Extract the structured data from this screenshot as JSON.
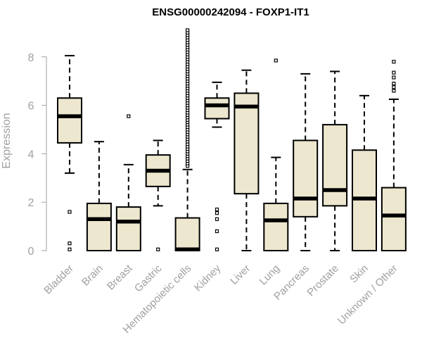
{
  "chart_data": {
    "type": "box",
    "title": "ENSG00000242094 - FOXP1-IT1",
    "xlabel": "",
    "ylabel": "Expression",
    "ylim": [
      0,
      9
    ],
    "yticks": [
      0,
      2,
      4,
      6,
      8
    ],
    "grid": false,
    "colors": {
      "box_fill": "#ede7cf",
      "box_stroke": "#000000",
      "axis": "#a0a0a0",
      "tick_label": "#a0a0a0",
      "title": "#000000"
    },
    "categories": [
      "Bladder",
      "Brain",
      "Breast",
      "Gastric",
      "Hematopoietic cells",
      "Kidney",
      "Liver",
      "Lung",
      "Pancreas",
      "Prostate",
      "Skin",
      "Unknown / Other"
    ],
    "boxes": [
      {
        "category": "Bladder",
        "whisker_low": 3.2,
        "q1": 4.45,
        "median": 5.55,
        "q3": 6.3,
        "whisker_high": 8.05,
        "outliers": [
          1.6,
          0.3,
          0.05
        ]
      },
      {
        "category": "Brain",
        "whisker_low": 0,
        "q1": 0,
        "median": 1.3,
        "q3": 1.95,
        "whisker_high": 4.5,
        "outliers": []
      },
      {
        "category": "Breast",
        "whisker_low": 0,
        "q1": 0,
        "median": 1.2,
        "q3": 1.8,
        "whisker_high": 3.55,
        "outliers": [
          5.55
        ]
      },
      {
        "category": "Gastric",
        "whisker_low": 1.85,
        "q1": 2.65,
        "median": 3.3,
        "q3": 3.95,
        "whisker_high": 4.55,
        "outliers": [
          0.05
        ]
      },
      {
        "category": "Hematopoietic cells",
        "whisker_low": 0,
        "q1": 0,
        "median": 0.05,
        "q3": 1.35,
        "whisker_high": 3.35,
        "outliers": [
          3.5,
          3.6,
          3.7,
          3.8,
          3.9,
          4.0,
          4.1,
          4.2,
          4.3,
          4.4,
          4.5,
          4.6,
          4.7,
          4.8,
          4.9,
          5.0,
          5.1,
          5.2,
          5.3,
          5.4,
          5.5,
          5.6,
          5.7,
          5.8,
          5.9,
          6.0,
          6.1,
          6.2,
          6.3,
          6.4,
          6.5,
          6.6,
          6.7,
          6.8,
          6.9,
          7.0,
          7.1,
          7.2,
          7.3,
          7.4,
          7.5,
          7.6,
          7.7,
          7.8,
          7.9,
          8.0,
          8.1,
          8.2,
          8.3,
          8.4,
          8.5,
          8.6,
          8.7,
          8.8,
          8.9,
          9.0,
          9.1
        ]
      },
      {
        "category": "Kidney",
        "whisker_low": 5.1,
        "q1": 5.45,
        "median": 6.0,
        "q3": 6.3,
        "whisker_high": 6.95,
        "outliers": [
          1.7,
          1.55,
          1.3,
          0.8,
          0.05
        ]
      },
      {
        "category": "Liver",
        "whisker_low": 0,
        "q1": 2.35,
        "median": 5.95,
        "q3": 6.5,
        "whisker_high": 7.45,
        "outliers": []
      },
      {
        "category": "Lung",
        "whisker_low": 0,
        "q1": 0,
        "median": 1.25,
        "q3": 1.95,
        "whisker_high": 3.85,
        "outliers": [
          7.85
        ]
      },
      {
        "category": "Pancreas",
        "whisker_low": 0,
        "q1": 1.4,
        "median": 2.15,
        "q3": 4.55,
        "whisker_high": 7.3,
        "outliers": []
      },
      {
        "category": "Prostate",
        "whisker_low": 0,
        "q1": 1.85,
        "median": 2.5,
        "q3": 5.2,
        "whisker_high": 7.4,
        "outliers": []
      },
      {
        "category": "Skin",
        "whisker_low": 0,
        "q1": 0,
        "median": 2.15,
        "q3": 4.15,
        "whisker_high": 6.4,
        "outliers": []
      },
      {
        "category": "Unknown / Other",
        "whisker_low": 0,
        "q1": 0,
        "median": 1.45,
        "q3": 2.6,
        "whisker_high": 6.25,
        "outliers": [
          6.6,
          6.75,
          6.9,
          7.15,
          7.35,
          7.8
        ]
      }
    ]
  }
}
